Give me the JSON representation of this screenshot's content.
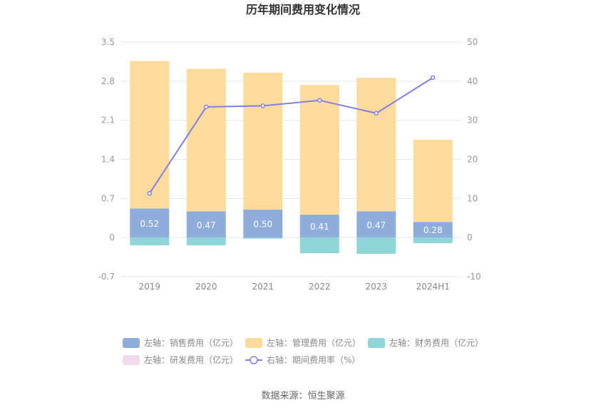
{
  "chart_data": {
    "type": "bar",
    "title": "历年期间费用变化情况",
    "categories": [
      "2019",
      "2020",
      "2021",
      "2022",
      "2023",
      "2024H1"
    ],
    "left_axis": {
      "ylim": [
        -0.7,
        3.5
      ],
      "ticks": [
        "-0.7",
        "0",
        "0.7",
        "1.4",
        "2.1",
        "2.8",
        "3.5"
      ]
    },
    "right_axis": {
      "ylim": [
        -10,
        50
      ],
      "ticks": [
        "-10",
        "0",
        "10",
        "20",
        "30",
        "40",
        "50"
      ]
    },
    "series": [
      {
        "name": "左轴：销售费用（亿元）",
        "kind": "bar",
        "axis": "left",
        "color": "#8eacdc",
        "values": [
          0.52,
          0.47,
          0.5,
          0.41,
          0.47,
          0.28
        ],
        "labels": [
          "0.52",
          "0.47",
          "0.50",
          "0.41",
          "0.47",
          "0.28"
        ]
      },
      {
        "name": "左轴：管理费用（亿元）",
        "kind": "bar",
        "axis": "left",
        "color": "#fedb9b",
        "values": [
          2.64,
          2.55,
          2.45,
          2.32,
          2.39,
          1.47
        ]
      },
      {
        "name": "左轴：财务费用（亿元）",
        "kind": "bar",
        "axis": "left",
        "color": "#8ed5d8",
        "values": [
          -0.14,
          -0.14,
          -0.02,
          -0.28,
          -0.29,
          -0.1
        ]
      },
      {
        "name": "左轴：研发费用（亿元）",
        "kind": "bar",
        "axis": "left",
        "color": "#f3d9ec",
        "values": [
          0,
          0,
          0,
          0,
          0,
          0
        ]
      },
      {
        "name": "右轴：期间费用率（%）",
        "kind": "line",
        "axis": "right",
        "color": "#7f7fe8",
        "values": [
          11.3,
          33.4,
          33.7,
          35.1,
          31.8,
          40.9
        ]
      }
    ],
    "source": "数据来源：恒生聚源"
  }
}
